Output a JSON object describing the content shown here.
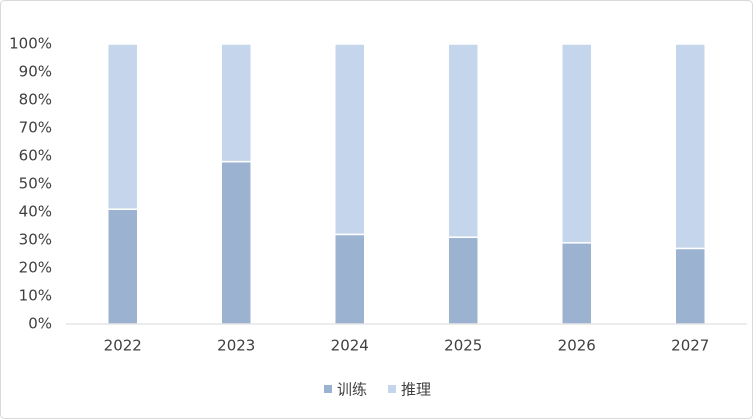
{
  "chart_data": {
    "type": "stacked_bar",
    "categories": [
      "2022",
      "2023",
      "2024",
      "2025",
      "2026",
      "2027"
    ],
    "series": [
      {
        "name": "训练",
        "color": "#9bb2d1",
        "values": [
          41,
          58,
          32,
          31,
          29,
          27
        ]
      },
      {
        "name": "推理",
        "color": "#c5d6ec",
        "values": [
          59,
          42,
          68,
          69,
          71,
          73
        ]
      }
    ],
    "ylim": [
      0,
      100
    ],
    "yticks": [
      {
        "value": 0,
        "label": "0%"
      },
      {
        "value": 10,
        "label": "10%"
      },
      {
        "value": 20,
        "label": "20%"
      },
      {
        "value": 30,
        "label": "30%"
      },
      {
        "value": 40,
        "label": "40%"
      },
      {
        "value": 50,
        "label": "50%"
      },
      {
        "value": 60,
        "label": "60%"
      },
      {
        "value": 70,
        "label": "70%"
      },
      {
        "value": 80,
        "label": "80%"
      },
      {
        "value": 90,
        "label": "90%"
      },
      {
        "value": 100,
        "label": "100%"
      }
    ],
    "legend": "bottom"
  }
}
